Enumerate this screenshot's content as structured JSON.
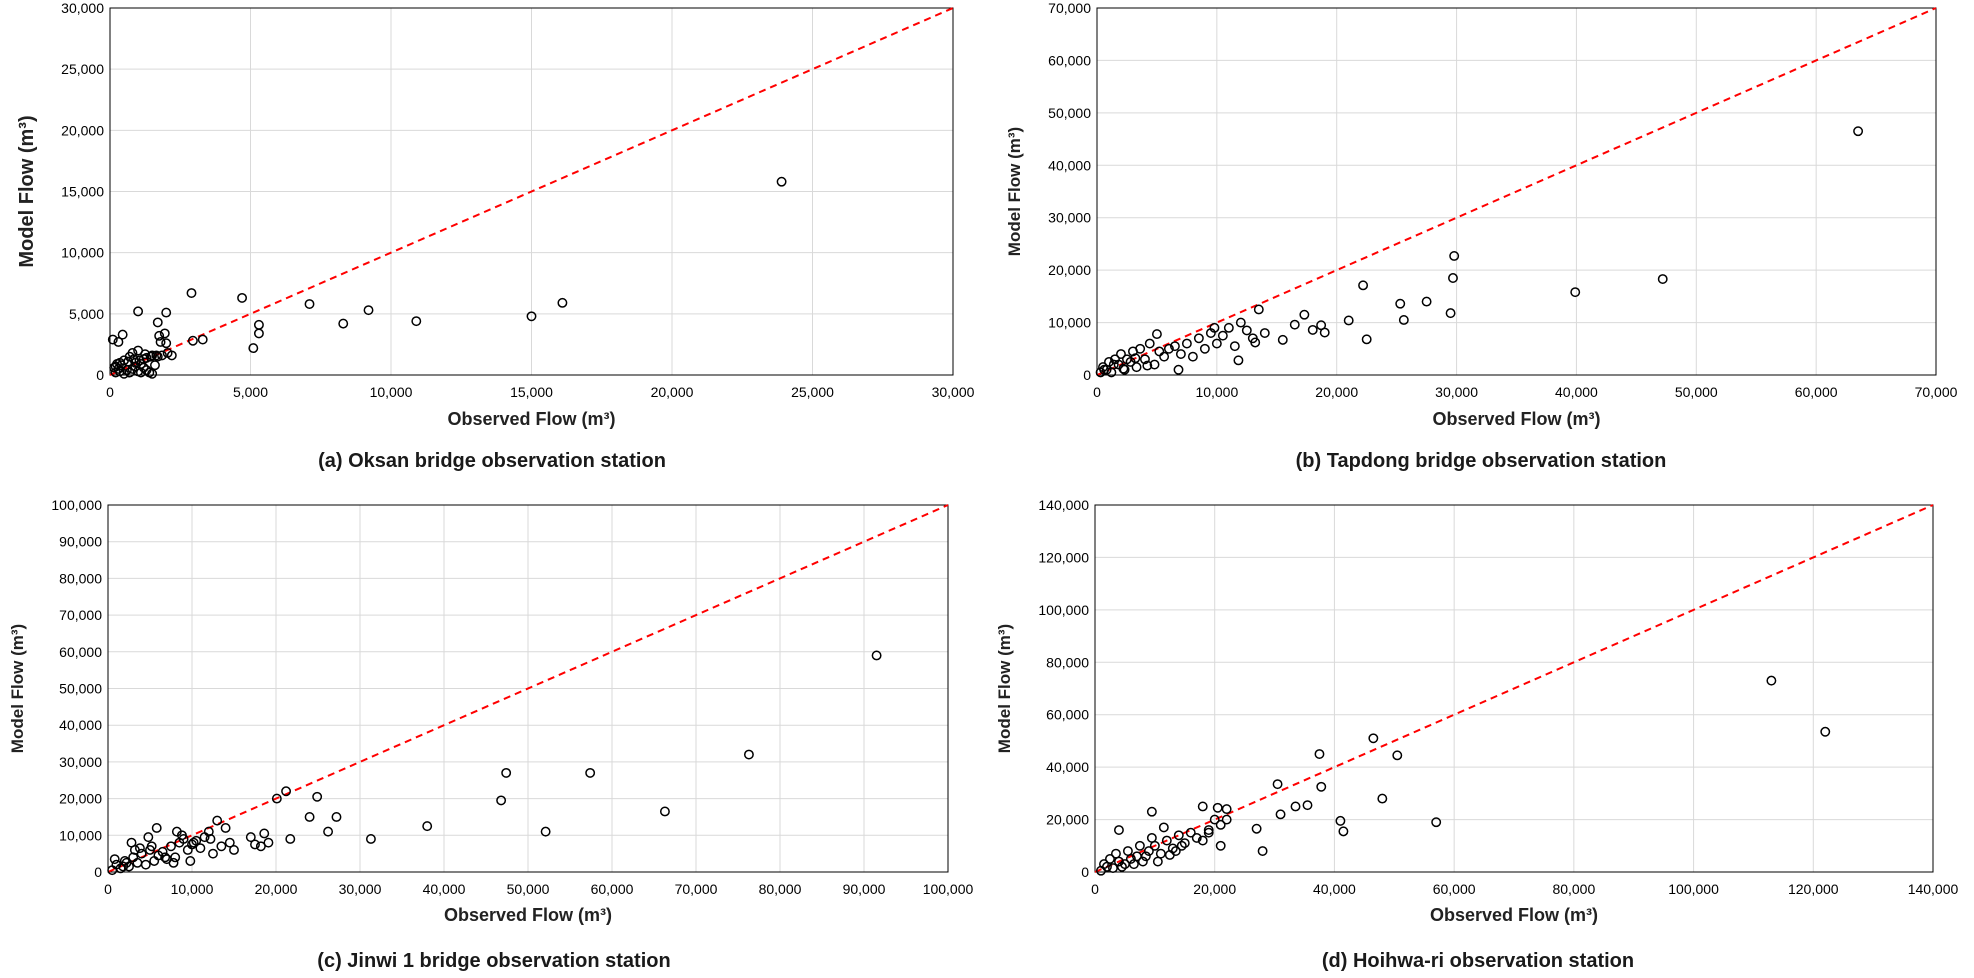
{
  "chart_data": [
    {
      "type": "scatter",
      "caption": "(a) Oksan bridge observation station",
      "xlabel": "Observed Flow (m³)",
      "ylabel": "Model Flow (m³)",
      "xlim": [
        0,
        30000
      ],
      "ylim": [
        0,
        30000
      ],
      "xticks": [
        0,
        5000,
        10000,
        15000,
        20000,
        25000,
        30000
      ],
      "yticks": [
        0,
        5000,
        10000,
        15000,
        20000,
        25000,
        30000
      ],
      "tick_labels_x": [
        "0",
        "5,000",
        "10,000",
        "15,000",
        "20,000",
        "25,000",
        "30,000"
      ],
      "tick_labels_y": [
        "0",
        "5,000",
        "10,000",
        "15,000",
        "20,000",
        "25,000",
        "30,000"
      ],
      "reference_line": "1:1",
      "x": [
        200,
        350,
        500,
        300,
        400,
        150,
        250,
        600,
        700,
        800,
        900,
        1000,
        1100,
        1200,
        1300,
        1400,
        1500,
        1600,
        500,
        700,
        900,
        1100,
        1300,
        1500,
        800,
        1000,
        1200,
        300,
        100,
        450,
        650,
        850,
        1050,
        1250,
        1450,
        1650,
        1850,
        2050,
        1800,
        2000,
        1750,
        1950,
        2200,
        2900,
        3300,
        2950,
        4700,
        5100,
        5300,
        5300,
        7100,
        8300,
        9200,
        10900,
        15000,
        16100,
        23900,
        200,
        350,
        1000,
        1700,
        2000,
        1700
      ],
      "y": [
        200,
        300,
        100,
        500,
        800,
        600,
        900,
        400,
        200,
        500,
        700,
        300,
        200,
        600,
        400,
        200,
        100,
        800,
        1200,
        1500,
        1000,
        900,
        1400,
        1600,
        1800,
        2000,
        1300,
        2700,
        2900,
        3300,
        1100,
        1300,
        1200,
        1700,
        1500,
        1600,
        1600,
        1800,
        2700,
        2600,
        3200,
        3400,
        1600,
        6700,
        2900,
        2800,
        6300,
        2200,
        3400,
        4100,
        5800,
        4200,
        5300,
        4400,
        4800,
        5900,
        15800,
        700,
        1000,
        5200,
        4300,
        5100,
        1500
      ]
    },
    {
      "type": "scatter",
      "caption": "(b) Tapdong bridge observation station",
      "xlabel": "Observed Flow (m³)",
      "ylabel": "Model Flow (m³)",
      "xlim": [
        0,
        70000
      ],
      "ylim": [
        0,
        70000
      ],
      "xticks": [
        0,
        10000,
        20000,
        30000,
        40000,
        50000,
        60000,
        70000
      ],
      "yticks": [
        0,
        10000,
        20000,
        30000,
        40000,
        50000,
        60000,
        70000
      ],
      "tick_labels_x": [
        "0",
        "10,000",
        "20,000",
        "30,000",
        "40,000",
        "50,000",
        "60,000",
        "70,000"
      ],
      "tick_labels_y": [
        "0",
        "10,000",
        "20,000",
        "30,000",
        "40,000",
        "50,000",
        "60,000",
        "70,000"
      ],
      "reference_line": "1:1",
      "x": [
        300,
        500,
        800,
        1000,
        1200,
        1500,
        1800,
        2000,
        2300,
        2500,
        2800,
        3000,
        3300,
        3600,
        4000,
        4400,
        4800,
        5200,
        5600,
        6000,
        6500,
        7000,
        7500,
        8000,
        8500,
        9000,
        9500,
        10000,
        10500,
        11000,
        11500,
        12000,
        12500,
        13000,
        13500,
        14000,
        600,
        1400,
        2200,
        3200,
        4200,
        5000,
        6800,
        9800,
        11800,
        13200,
        15500,
        16500,
        17300,
        18000,
        18700,
        19000,
        21000,
        22200,
        22500,
        25300,
        25600,
        27500,
        29500,
        29700,
        29800,
        39900,
        47200,
        63500
      ],
      "y": [
        500,
        1500,
        1000,
        2500,
        500,
        3000,
        2000,
        4000,
        1000,
        3000,
        2500,
        4500,
        1500,
        5000,
        3000,
        6000,
        2000,
        4500,
        3500,
        5000,
        5500,
        4000,
        6000,
        3500,
        7000,
        5000,
        8000,
        6000,
        7500,
        9000,
        5500,
        10000,
        8500,
        7000,
        12500,
        8000,
        1000,
        2000,
        1200,
        3200,
        1800,
        7800,
        1000,
        9000,
        2800,
        6200,
        6700,
        9600,
        11500,
        8600,
        9500,
        8100,
        10400,
        17100,
        6800,
        13600,
        10500,
        14000,
        11800,
        18500,
        22700,
        15800,
        18300,
        46500
      ]
    },
    {
      "type": "scatter",
      "caption": "(c) Jinwi 1 bridge observation station",
      "xlabel": "Observed Flow (m³)",
      "ylabel": "Model Flow (m³)",
      "xlim": [
        0,
        100000
      ],
      "ylim": [
        0,
        100000
      ],
      "xticks": [
        0,
        10000,
        20000,
        30000,
        40000,
        50000,
        60000,
        70000,
        80000,
        90000,
        100000
      ],
      "yticks": [
        0,
        10000,
        20000,
        30000,
        40000,
        50000,
        60000,
        70000,
        80000,
        90000,
        100000
      ],
      "tick_labels_x": [
        "0",
        "10,000",
        "20,000",
        "30,000",
        "40,000",
        "50,000",
        "60,000",
        "70,000",
        "80,000",
        "90,000",
        "100,000"
      ],
      "tick_labels_y": [
        "0",
        "10,000",
        "20,000",
        "30,000",
        "40,000",
        "50,000",
        "60,000",
        "70,000",
        "80,000",
        "90,000",
        "100,000"
      ],
      "reference_line": "1:1",
      "x": [
        500,
        1000,
        1500,
        2000,
        2500,
        3000,
        3500,
        4000,
        4500,
        5000,
        5500,
        6000,
        6500,
        7000,
        7500,
        8000,
        8500,
        9000,
        9500,
        10000,
        10500,
        11000,
        11500,
        12000,
        12500,
        13000,
        13500,
        14000,
        14500,
        15000,
        800,
        1800,
        2800,
        3800,
        4800,
        5800,
        6800,
        7800,
        8800,
        9800,
        2200,
        3200,
        5200,
        8200,
        10200,
        12200,
        17000,
        17500,
        18200,
        18600,
        19100,
        20100,
        21200,
        21700,
        24000,
        24900,
        26200,
        27200,
        31300,
        38000,
        46800,
        47400,
        52100,
        57400,
        66300,
        76300,
        91500
      ],
      "y": [
        500,
        2000,
        1000,
        3000,
        1500,
        4000,
        2500,
        5000,
        2000,
        6000,
        3000,
        4500,
        5500,
        3500,
        7000,
        4000,
        8000,
        9000,
        6000,
        7500,
        8500,
        6500,
        9500,
        11000,
        5000,
        14000,
        7000,
        12000,
        8000,
        6000,
        3500,
        1500,
        8000,
        6500,
        9500,
        12000,
        4000,
        2500,
        10000,
        3000,
        2500,
        6000,
        7000,
        11000,
        8000,
        9000,
        9500,
        7500,
        7000,
        10500,
        8000,
        20000,
        22000,
        9000,
        15000,
        20500,
        11000,
        15000,
        9000,
        12500,
        19500,
        27000,
        11000,
        27000,
        16500,
        32000,
        59000
      ]
    },
    {
      "type": "scatter",
      "caption": "(d) Hoihwa-ri observation station",
      "xlabel": "Observed Flow (m³)",
      "ylabel": "Model Flow (m³)",
      "xlim": [
        0,
        140000
      ],
      "ylim": [
        0,
        140000
      ],
      "xticks": [
        0,
        20000,
        40000,
        60000,
        80000,
        100000,
        120000,
        140000
      ],
      "yticks": [
        0,
        20000,
        40000,
        60000,
        80000,
        100000,
        120000,
        140000
      ],
      "tick_labels_x": [
        "0",
        "20,000",
        "40,000",
        "60,000",
        "80,000",
        "100,000",
        "120,000",
        "140,000"
      ],
      "tick_labels_y": [
        "0",
        "20,000",
        "40,000",
        "60,000",
        "80,000",
        "100,000",
        "120,000",
        "140,000"
      ],
      "reference_line": "1:1",
      "x": [
        1000,
        2000,
        3000,
        4000,
        5000,
        6000,
        7000,
        8000,
        9000,
        10000,
        11000,
        12000,
        13000,
        14000,
        15000,
        16000,
        17000,
        18000,
        19000,
        20000,
        21000,
        22000,
        1500,
        2500,
        3500,
        4500,
        5500,
        6500,
        7500,
        8500,
        9500,
        10500,
        11500,
        12500,
        13500,
        14500,
        4000,
        9500,
        18000,
        19000,
        20500,
        21000,
        22000,
        27000,
        28000,
        30500,
        31000,
        33500,
        35500,
        37500,
        37800,
        41000,
        41500,
        46500,
        48000,
        50500,
        57000,
        113000,
        122000
      ],
      "y": [
        500,
        2000,
        1500,
        4000,
        3000,
        5000,
        6000,
        4000,
        8000,
        10000,
        7000,
        12000,
        9000,
        14000,
        11000,
        15000,
        13000,
        12000,
        16000,
        20000,
        18000,
        24000,
        3000,
        5000,
        7000,
        2000,
        8000,
        3000,
        10000,
        6000,
        13000,
        4000,
        17000,
        6500,
        8000,
        10000,
        16000,
        23000,
        25000,
        15000,
        24500,
        10000,
        20000,
        16500,
        8000,
        33500,
        22000,
        25000,
        25500,
        45000,
        32500,
        19500,
        15500,
        51000,
        28000,
        44500,
        19000,
        73000,
        53500
      ]
    }
  ]
}
